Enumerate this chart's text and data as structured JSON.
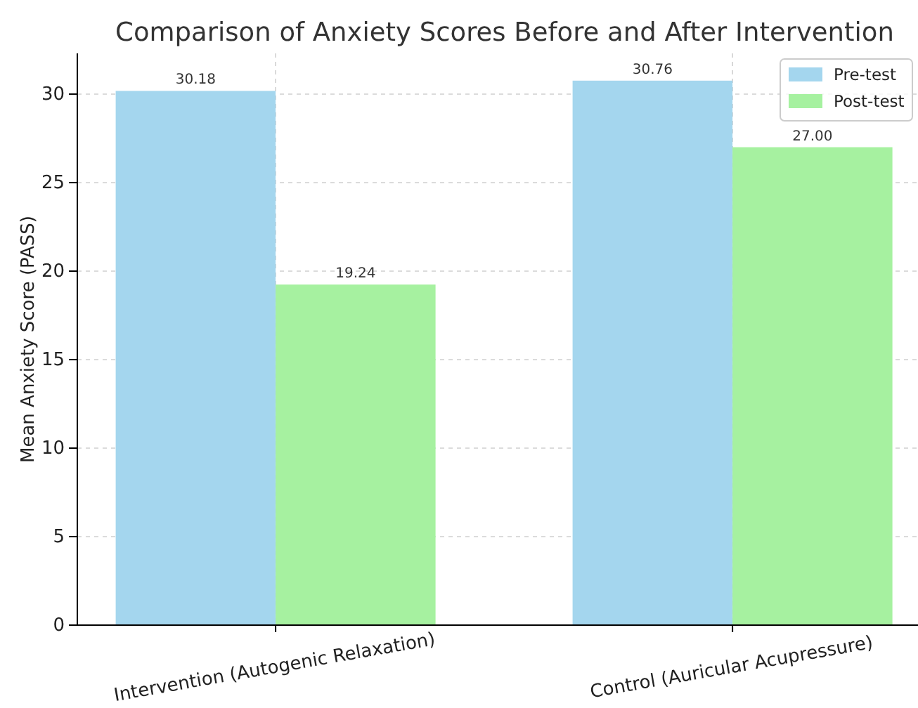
{
  "chart_data": {
    "type": "bar",
    "title": "Comparison of Anxiety Scores Before and After Intervention",
    "ylabel": "Mean Anxiety Score (PASS)",
    "categories": [
      "Intervention (Autogenic Relaxation)",
      "Control (Auricular Acupressure)"
    ],
    "series": [
      {
        "name": "Pre-test",
        "color": "#a4d6ee",
        "values": [
          30.18,
          30.76
        ],
        "value_labels": [
          "30.18",
          "30.76"
        ]
      },
      {
        "name": "Post-test",
        "color": "#a6f1a0",
        "values": [
          19.24,
          27.0
        ],
        "value_labels": [
          "19.24",
          "27.00"
        ]
      }
    ],
    "ylim": [
      0,
      32.3
    ],
    "yticks": [
      0,
      5,
      10,
      15,
      20,
      25,
      30
    ],
    "grid": true,
    "legend": "top right"
  }
}
